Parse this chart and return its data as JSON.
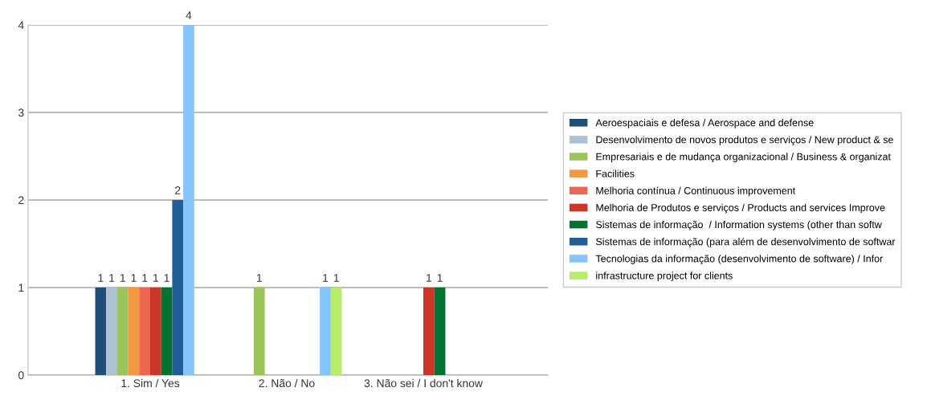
{
  "chart_data": {
    "type": "bar",
    "categories": [
      "1. Sim / Yes",
      "2. Não / No",
      "3. Não sei / I don't know"
    ],
    "series": [
      {
        "name": "Aeroespaciais e defesa / Aerospace and defense",
        "color": "#1f4e79",
        "values": [
          1,
          null,
          null
        ]
      },
      {
        "name": "Desenvolvimento de novos produtos e serviços / New product & se",
        "color": "#adc1d3",
        "values": [
          1,
          null,
          null
        ]
      },
      {
        "name": "Empresariais e de mudança organizacional / Business & organizat",
        "color": "#9bc45a",
        "values": [
          1,
          1,
          null
        ]
      },
      {
        "name": "Facilities",
        "color": "#f39843",
        "values": [
          1,
          null,
          null
        ]
      },
      {
        "name": "Melhoria contínua / Continuous improvement",
        "color": "#ee6651",
        "values": [
          1,
          null,
          null
        ]
      },
      {
        "name": "Melhoria de Produtos e serviços / Products and services Improve",
        "color": "#cc3628",
        "values": [
          1,
          null,
          1
        ]
      },
      {
        "name": "Sistemas de informação  / Information systems (other than softw",
        "color": "#047232",
        "values": [
          1,
          null,
          1
        ]
      },
      {
        "name": "Sistemas de informação (para além de desenvolvimento de softwar",
        "color": "#215e96",
        "values": [
          2,
          null,
          null
        ]
      },
      {
        "name": "Tecnologias da informação (desenvolvimento de software) / Infor",
        "color": "#86c5fb",
        "values": [
          4,
          1,
          null
        ]
      },
      {
        "name": "infrastructure project for clients",
        "color": "#b9ec6c",
        "values": [
          null,
          1,
          null
        ]
      }
    ],
    "ylim": [
      0,
      4
    ],
    "yticks": [
      0,
      1,
      2,
      3,
      4
    ],
    "grid": "y",
    "legend": "right",
    "data_labels": true
  }
}
